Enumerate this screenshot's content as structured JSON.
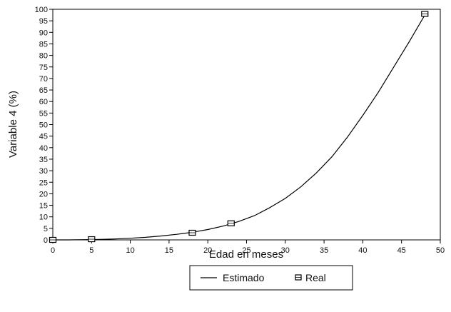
{
  "chart_data": {
    "type": "line",
    "title": "",
    "xlabel": "Edad en meses",
    "ylabel": "Variable 4 (%)",
    "xlim": [
      0,
      50
    ],
    "ylim": [
      0,
      100
    ],
    "x_ticks": [
      "0",
      "5",
      "10",
      "15",
      "20",
      "25",
      "30",
      "35",
      "40",
      "45",
      "50"
    ],
    "y_ticks": [
      "0",
      "5",
      "10",
      "15",
      "20",
      "25",
      "30",
      "35",
      "40",
      "45",
      "50",
      "55",
      "60",
      "65",
      "70",
      "75",
      "80",
      "85",
      "90",
      "95",
      "100"
    ],
    "grid": false,
    "legend_position": "bottom-center",
    "series": [
      {
        "name": "Estimado",
        "kind": "line",
        "color": "#000000",
        "x": [
          0,
          2,
          4,
          6,
          8,
          10,
          12,
          14,
          16,
          18,
          20,
          22,
          24,
          26,
          28,
          30,
          32,
          34,
          36,
          38,
          40,
          42,
          44,
          46,
          48
        ],
        "y": [
          0,
          0,
          0.1,
          0.2,
          0.4,
          0.7,
          1.1,
          1.7,
          2.4,
          3.3,
          4.5,
          6.0,
          8.0,
          10.5,
          14.0,
          18.0,
          23.0,
          29.0,
          36.0,
          44.5,
          54.0,
          64.0,
          75.0,
          86.0,
          97.5
        ]
      },
      {
        "name": "Real",
        "kind": "marker",
        "color": "#000000",
        "x": [
          0,
          5,
          18,
          23,
          48
        ],
        "y": [
          0,
          0.3,
          3.1,
          7.2,
          98
        ]
      }
    ]
  }
}
